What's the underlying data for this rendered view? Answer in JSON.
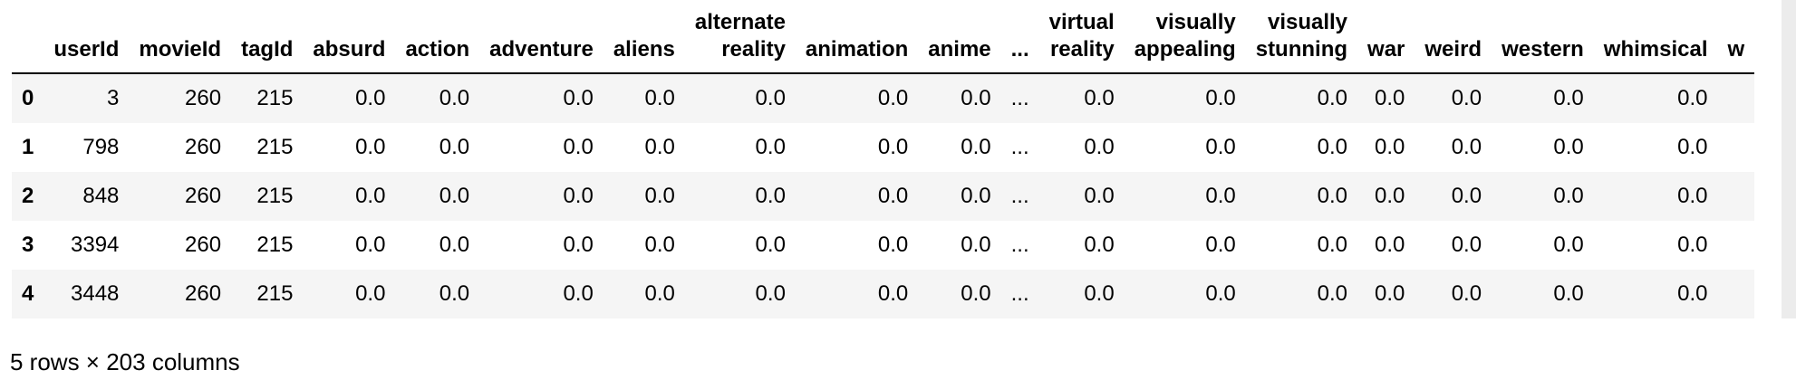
{
  "dataframe": {
    "index_header": "",
    "columns": [
      "userId",
      "movieId",
      "tagId",
      "absurd",
      "action",
      "adventure",
      "aliens",
      "alternate\nreality",
      "animation",
      "anime",
      "...",
      "virtual\nreality",
      "visually\nappealing",
      "visually\nstunning",
      "war",
      "weird",
      "western",
      "whimsical",
      "w"
    ],
    "rows": [
      {
        "index": "0",
        "cells": [
          "3",
          "260",
          "215",
          "0.0",
          "0.0",
          "0.0",
          "0.0",
          "0.0",
          "0.0",
          "0.0",
          "...",
          "0.0",
          "0.0",
          "0.0",
          "0.0",
          "0.0",
          "0.0",
          "0.0",
          ""
        ]
      },
      {
        "index": "1",
        "cells": [
          "798",
          "260",
          "215",
          "0.0",
          "0.0",
          "0.0",
          "0.0",
          "0.0",
          "0.0",
          "0.0",
          "...",
          "0.0",
          "0.0",
          "0.0",
          "0.0",
          "0.0",
          "0.0",
          "0.0",
          ""
        ]
      },
      {
        "index": "2",
        "cells": [
          "848",
          "260",
          "215",
          "0.0",
          "0.0",
          "0.0",
          "0.0",
          "0.0",
          "0.0",
          "0.0",
          "...",
          "0.0",
          "0.0",
          "0.0",
          "0.0",
          "0.0",
          "0.0",
          "0.0",
          ""
        ]
      },
      {
        "index": "3",
        "cells": [
          "3394",
          "260",
          "215",
          "0.0",
          "0.0",
          "0.0",
          "0.0",
          "0.0",
          "0.0",
          "0.0",
          "...",
          "0.0",
          "0.0",
          "0.0",
          "0.0",
          "0.0",
          "0.0",
          "0.0",
          ""
        ]
      },
      {
        "index": "4",
        "cells": [
          "3448",
          "260",
          "215",
          "0.0",
          "0.0",
          "0.0",
          "0.0",
          "0.0",
          "0.0",
          "0.0",
          "...",
          "0.0",
          "0.0",
          "0.0",
          "0.0",
          "0.0",
          "0.0",
          "0.0",
          ""
        ]
      }
    ],
    "shape_caption": "5 rows × 203 columns"
  }
}
